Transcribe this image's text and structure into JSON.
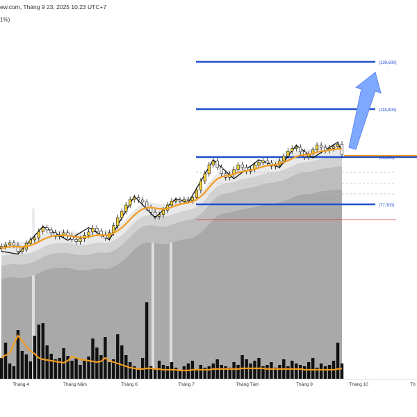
{
  "header": {
    "line1": "ew.com, Tháng 9 23, 2025 10:23 UTC+7",
    "line2": "1%)"
  },
  "colors": {
    "candle_up": "#f3d13a",
    "candle_down": "#111111",
    "ma_line": "#f39c1f",
    "level_line": "#1f4fcf",
    "arrow": "#7fa8ff",
    "red_line": "#e03030",
    "volume_bar": "#111111"
  },
  "chart_data": {
    "type": "candlestick",
    "x_axis": {
      "labels": [
        "Tháng 4",
        "Tháng Năm",
        "Tháng 6",
        "Tháng 7",
        "Tháng Tám",
        "Tháng 9",
        "Tháng 10",
        "Th"
      ]
    },
    "levels": [
      {
        "label": "(139,600)",
        "value": 139600
      },
      {
        "label": "(118,800)",
        "value": 118800
      },
      {
        "label": "(96,100)",
        "value": 96100
      },
      {
        "label": "(77,300)",
        "value": 77300
      }
    ],
    "projection_arrow": {
      "direction": "up",
      "target": 139600
    },
    "series_close": [
      60.5,
      61.2,
      62.0,
      61.0,
      58.6,
      59.5,
      61.8,
      63.2,
      64.0,
      66.5,
      68.0,
      67.1,
      66.0,
      64.5,
      65.2,
      66.0,
      64.8,
      63.4,
      62.5,
      63.6,
      65.0,
      66.3,
      67.8,
      66.6,
      65.2,
      64.0,
      66.0,
      68.8,
      72.0,
      74.5,
      77.0,
      79.2,
      80.0,
      79.0,
      78.2,
      76.0,
      74.2,
      72.5,
      73.2,
      75.0,
      77.0,
      78.6,
      79.0,
      78.5,
      79.2,
      78.8,
      80.0,
      83.0,
      86.5,
      89.5,
      93.0,
      94.5,
      92.0,
      89.5,
      88.0,
      89.2,
      91.2,
      93.0,
      92.0,
      90.5,
      91.3,
      93.0,
      94.0,
      94.6,
      93.8,
      92.5,
      92.8,
      94.5,
      96.5,
      98.5,
      99.5,
      100.0,
      98.2,
      96.2,
      97.3,
      99.0,
      100.8,
      100.0,
      98.8,
      99.6,
      100.3,
      101.2,
      97.0
    ],
    "moving_average": [
      59.8,
      60.1,
      60.4,
      60.6,
      60.4,
      60.3,
      60.6,
      61.0,
      61.6,
      62.4,
      63.3,
      64.0,
      64.5,
      64.8,
      64.9,
      65.0,
      64.9,
      64.6,
      64.3,
      64.1,
      64.1,
      64.3,
      64.7,
      65.0,
      65.1,
      65.0,
      65.2,
      65.8,
      66.8,
      68.0,
      69.6,
      71.3,
      73.0,
      74.4,
      75.4,
      75.9,
      76.0,
      75.8,
      75.5,
      75.4,
      75.6,
      76.2,
      76.8,
      77.3,
      77.7,
      78.0,
      78.4,
      79.2,
      80.4,
      82.0,
      84.0,
      86.0,
      87.4,
      88.2,
      88.6,
      88.9,
      89.3,
      89.9,
      90.3,
      90.6,
      90.9,
      91.3,
      91.8,
      92.3,
      92.7,
      92.9,
      93.1,
      93.5,
      94.0,
      94.7,
      95.5,
      96.3,
      96.8,
      97.0,
      97.2,
      97.5,
      98.0,
      98.4,
      98.6,
      98.8,
      99.1,
      99.4,
      99.3
    ],
    "volume": [
      30,
      52,
      22,
      18,
      70,
      40,
      35,
      25,
      62,
      78,
      80,
      48,
      36,
      28,
      30,
      44,
      33,
      26,
      30,
      20,
      26,
      32,
      58,
      45,
      34,
      60,
      24,
      28,
      64,
      48,
      34,
      24,
      18,
      14,
      30,
      110,
      18,
      14,
      26,
      20,
      18,
      24,
      16,
      12,
      18,
      22,
      26,
      14,
      20,
      16,
      18,
      22,
      28,
      20,
      18,
      16,
      24,
      20,
      34,
      28,
      22,
      26,
      30,
      18,
      20,
      24,
      16,
      20,
      28,
      18,
      26,
      22,
      20,
      18,
      24,
      30,
      16,
      22,
      18,
      20,
      26,
      52,
      22
    ],
    "volume_ma": [
      30,
      34,
      36,
      50,
      62,
      55,
      46,
      40,
      36,
      30,
      28,
      27,
      26,
      25,
      24,
      23,
      26,
      32,
      30,
      28,
      27,
      26,
      25,
      24,
      25,
      30,
      26,
      24,
      22,
      20,
      18,
      16,
      15,
      14,
      14,
      15,
      15,
      14,
      14,
      13,
      13,
      13,
      13,
      12,
      12,
      12,
      13,
      13,
      13,
      13,
      13,
      14,
      14,
      14,
      14,
      14,
      14,
      14,
      15,
      15,
      15,
      15,
      15,
      15,
      14,
      14,
      14,
      14,
      14,
      14,
      14,
      14,
      14,
      13,
      13,
      13,
      13,
      13,
      13,
      13,
      13,
      14,
      15
    ]
  }
}
